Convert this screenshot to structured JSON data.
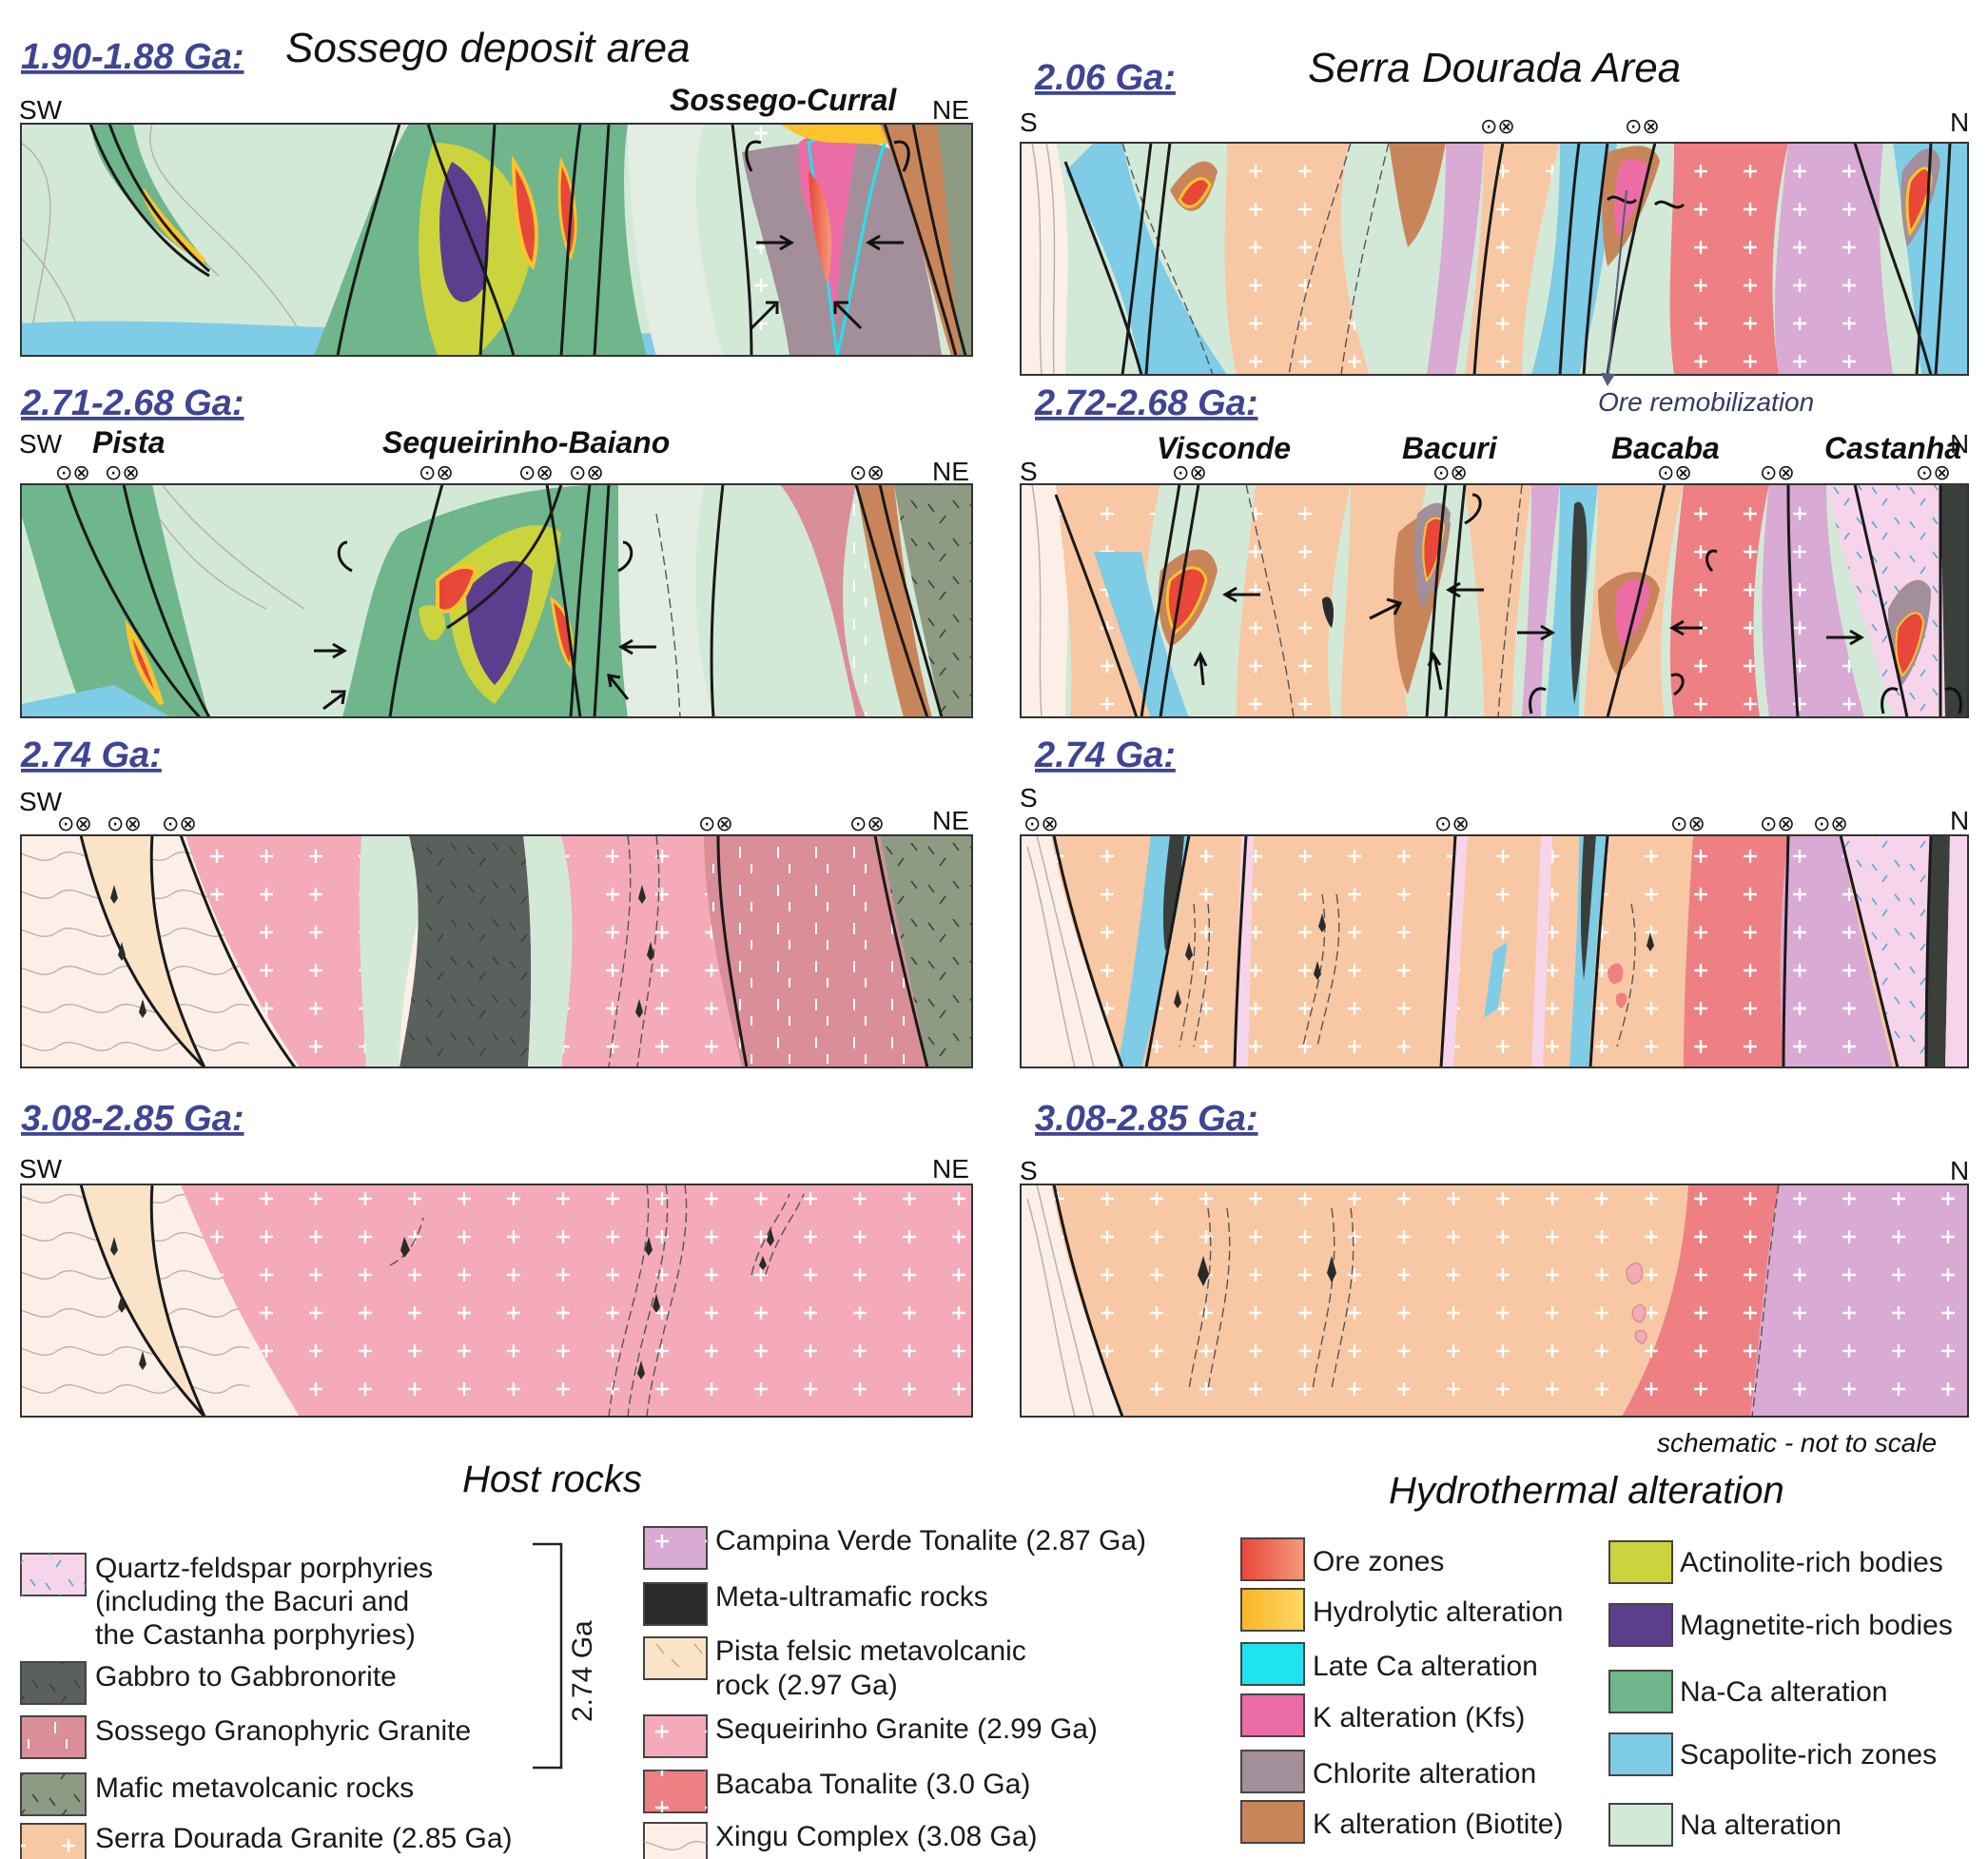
{
  "sossego": {
    "title": "Sossego deposit area",
    "panels": [
      {
        "age": "1.90-1.88 Ga:",
        "left_dir": "SW",
        "right_dir": "NE",
        "deposits": [
          "Sossego-Curral"
        ]
      },
      {
        "age": "2.71-2.68 Ga:",
        "left_dir": "SW",
        "right_dir": "NE",
        "deposits": [
          "Pista",
          "Sequeirinho-Baiano"
        ]
      },
      {
        "age": "2.74 Ga:",
        "left_dir": "SW",
        "right_dir": "NE"
      },
      {
        "age": "3.08-2.85 Ga:",
        "left_dir": "SW",
        "right_dir": "NE"
      }
    ]
  },
  "serra": {
    "title": "Serra Dourada Area",
    "panels": [
      {
        "age": "2.06 Ga:",
        "left_dir": "S",
        "right_dir": "N",
        "callout": "Ore remobilization"
      },
      {
        "age": "2.72-2.68 Ga:",
        "left_dir": "S",
        "right_dir": "N",
        "deposits": [
          "Visconde",
          "Bacuri",
          "Bacaba",
          "Castanha"
        ]
      },
      {
        "age": "2.74 Ga:",
        "left_dir": "S",
        "right_dir": "N"
      },
      {
        "age": "3.08-2.85 Ga:",
        "left_dir": "S",
        "right_dir": "N"
      }
    ],
    "note": "schematic - not to scale"
  },
  "fault_symbol": "⊙⊗",
  "colors": {
    "na_alteration": "#d3e9d8",
    "na_ca_alteration": "#6fb68d",
    "scapolite": "#7fcce6",
    "actinolite": "#cbd43c",
    "magnetite": "#5d3e8e",
    "ore": "#e8473a",
    "hydrolytic": "#fbc42c",
    "late_ca": "#1fe3ee",
    "k_kfs": "#ec6da6",
    "chlorite": "#a28f99",
    "k_biotite": "#c9855a",
    "sequeirinho_granite": "#f4aab8",
    "serra_dourada_granite": "#f8c8a4",
    "sossego_granophyric": "#d98e98",
    "gabbro": "#5a615d",
    "mafic_metavolcanic": "#8f9a82",
    "bacaba_tonalite": "#ee7f83",
    "campina_verde": "#d9aad3",
    "qfp": "#f6d4ea",
    "pista": "#fbe3c7",
    "xingu": "#fcefe8",
    "meta_ultramafic": "#2a2a2a"
  },
  "legend": {
    "host_title": "Host rocks",
    "group_label": "2.74 Ga",
    "host_col1": [
      {
        "label_lines": [
          "Quartz-feldspar porphyries",
          "(including the Bacuri and",
          "the Castanha porphyries)"
        ],
        "swatch": "qfp"
      },
      {
        "label_lines": [
          "Gabbro to Gabbronorite"
        ],
        "swatch": "gabbro"
      },
      {
        "label_lines": [
          "Sossego Granophyric Granite"
        ],
        "swatch": "sossego_granophyric"
      },
      {
        "label_lines": [
          "Mafic metavolcanic rocks"
        ],
        "swatch": "mafic_metavolcanic"
      },
      {
        "label_lines": [
          "Serra Dourada Granite (2.85 Ga)"
        ],
        "swatch": "serra_dourada_granite"
      }
    ],
    "host_col2": [
      {
        "label_lines": [
          "Campina Verde Tonalite (2.87 Ga)"
        ],
        "swatch": "campina_verde"
      },
      {
        "label_lines": [
          "Meta-ultramafic rocks"
        ],
        "swatch": "meta_ultramafic"
      },
      {
        "label_lines": [
          "Pista felsic metavolcanic",
          "rock (2.97 Ga)"
        ],
        "swatch": "pista"
      },
      {
        "label_lines": [
          "Sequeirinho Granite (2.99 Ga)"
        ],
        "swatch": "sequeirinho_granite"
      },
      {
        "label_lines": [
          "Bacaba Tonalite (3.0 Ga)"
        ],
        "swatch": "bacaba_tonalite"
      },
      {
        "label_lines": [
          "Xingu Complex (3.08 Ga)"
        ],
        "swatch": "xingu"
      }
    ],
    "alt_title": "Hydrothermal alteration",
    "alt_col1": [
      {
        "label": "Ore zones",
        "swatch": "ore"
      },
      {
        "label": "Hydrolytic alteration",
        "swatch": "hydrolytic"
      },
      {
        "label": "Late Ca alteration",
        "swatch": "late_ca"
      },
      {
        "label": "K alteration (Kfs)",
        "swatch": "k_kfs"
      },
      {
        "label": "Chlorite alteration",
        "swatch": "chlorite"
      },
      {
        "label": "K alteration (Biotite)",
        "swatch": "k_biotite"
      }
    ],
    "alt_col2": [
      {
        "label": "Actinolite-rich bodies",
        "swatch": "actinolite"
      },
      {
        "label": "Magnetite-rich bodies",
        "swatch": "magnetite"
      },
      {
        "label": "Na-Ca alteration",
        "swatch": "na_ca_alteration"
      },
      {
        "label": "Scapolite-rich zones",
        "swatch": "scapolite"
      },
      {
        "label": "Na alteration",
        "swatch": "na_alteration"
      }
    ]
  }
}
